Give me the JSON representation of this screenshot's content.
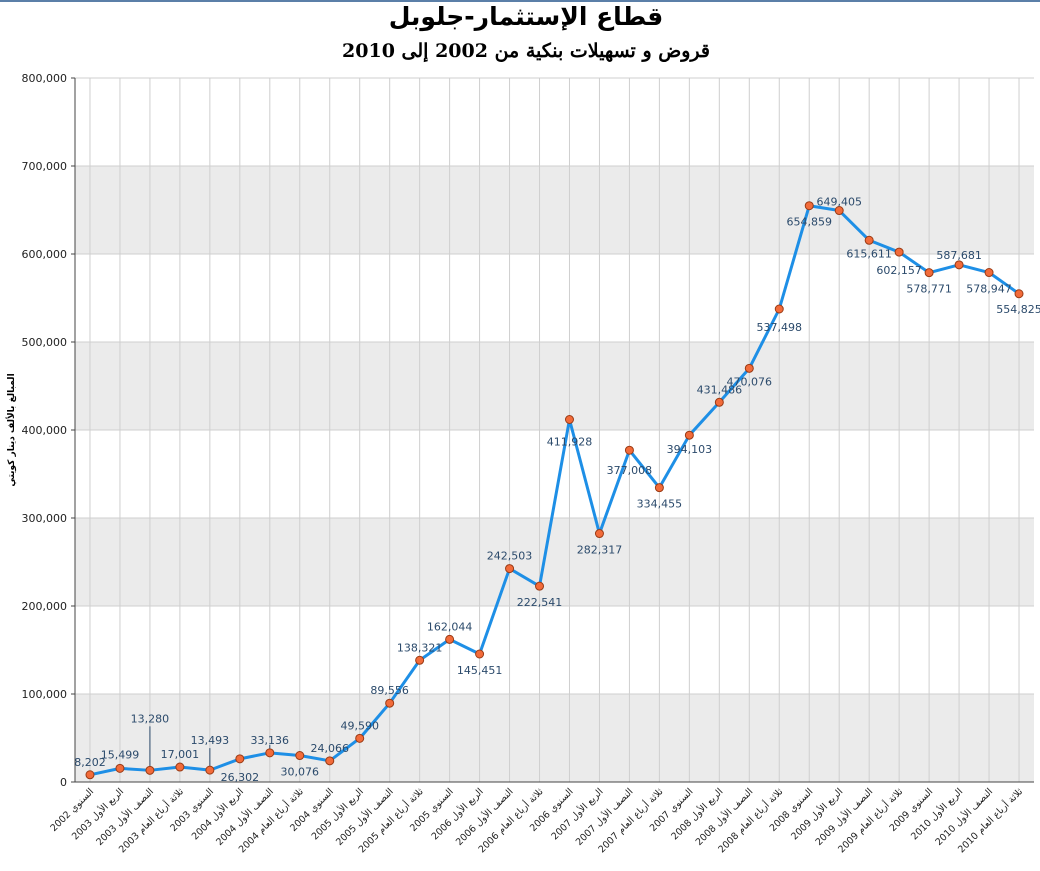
{
  "colors": {
    "line": "#1e8fe6",
    "marker_fill": "#f26b3a",
    "marker_stroke": "#9a3a14",
    "band": "#ebebeb",
    "grid": "#cfcfcf",
    "label": "#2b4a6b"
  },
  "chart_data": {
    "type": "line",
    "title": "قطاع الإستثمار-جلوبل",
    "subtitle": "قروض و تسهيلات بنكية من 2002 إلى 2010",
    "ylabel": "المبالغ بالألف دينار كويتي",
    "xlabel": "",
    "ylim": [
      0,
      800000
    ],
    "yticks": [
      0,
      100000,
      200000,
      300000,
      400000,
      500000,
      600000,
      700000,
      800000
    ],
    "ytick_labels": [
      "0",
      "100,000",
      "200,000",
      "300,000",
      "400,000",
      "500,000",
      "600,000",
      "700,000",
      "800,000"
    ],
    "grid": true,
    "legend": "none",
    "categories": [
      "السنوي 2002",
      "الربع الأول 2003",
      "النصف الأول 2003",
      "ثلاثة أرباع العام 2003",
      "السنوي 2003",
      "الربع الأول 2004",
      "النصف الأول 2004",
      "ثلاثة أرباع العام 2004",
      "السنوي 2004",
      "الربع الأول 2005",
      "النصف الأول 2005",
      "ثلاثة أرباع العام 2005",
      "السنوي 2005",
      "الربع الأول 2006",
      "النصف الأول 2006",
      "ثلاثة أرباع العام 2006",
      "السنوي 2006",
      "الربع الأول 2007",
      "النصف الأول 2007",
      "ثلاثة أرباع العام 2007",
      "السنوي 2007",
      "الربع الأول 2008",
      "النصف الأول 2008",
      "ثلاثة أرباع العام 2008",
      "السنوي 2008",
      "الربع الأول 2009",
      "النصف الأول 2009",
      "ثلاثة أرباع العام 2009",
      "السنوي 2009",
      "الربع الأول 2010",
      "النصف الأول 2010",
      "ثلاثة أرباع العام 2010"
    ],
    "values": [
      8202,
      15499,
      13280,
      17001,
      13493,
      26302,
      33136,
      30076,
      24066,
      49590,
      89556,
      138321,
      162044,
      145451,
      242503,
      222541,
      411928,
      282317,
      377008,
      334455,
      394103,
      431486,
      470076,
      537498,
      654859,
      649405,
      615611,
      602157,
      578771,
      587681,
      578947,
      554825
    ],
    "value_labels": [
      "8,202",
      "15,499",
      "13,280",
      "17,001",
      "13,493",
      "26,302",
      "33,136",
      "30,076",
      "24,066",
      "49,590",
      "89,556",
      "138,321",
      "162,044",
      "145,451",
      "242,503",
      "222,541",
      "411,928",
      "282,317",
      "377,008",
      "334,455",
      "394,103",
      "431,486",
      "470,076",
      "537,498",
      "654,859",
      "649,405",
      "615,611",
      "602,157",
      "578,771",
      "587,681",
      "578,947",
      "554,825"
    ]
  }
}
